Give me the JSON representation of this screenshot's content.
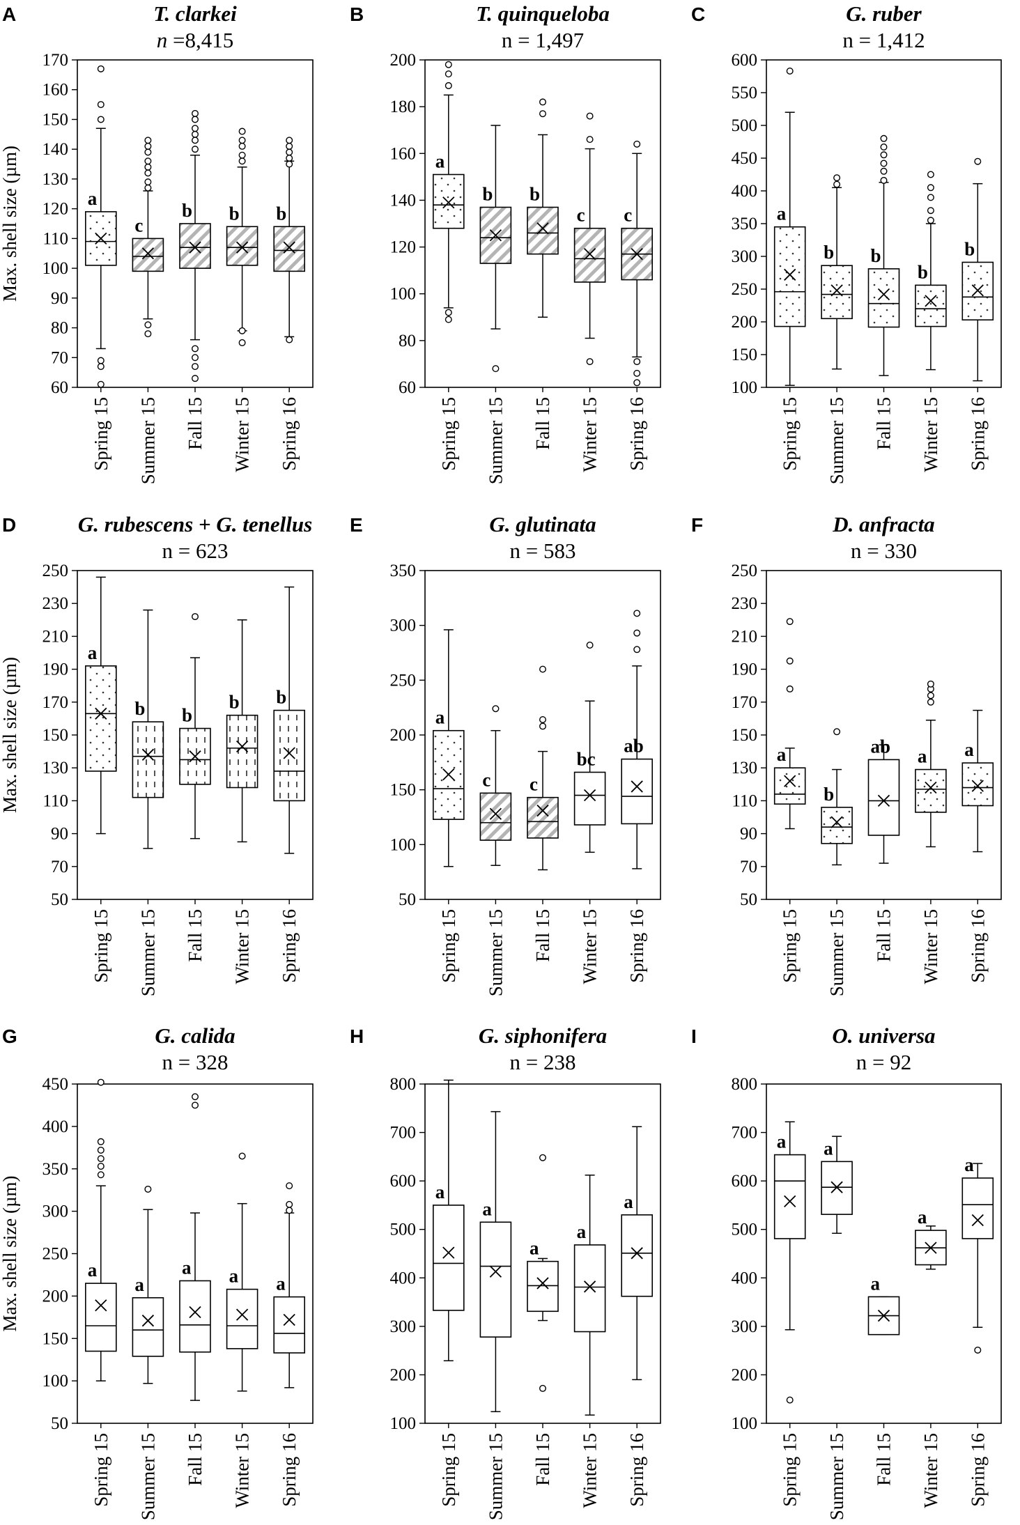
{
  "figure": {
    "ylabel": "Max. shell size (µm)"
  },
  "chart_data": [
    {
      "panel": "A",
      "type": "boxplot",
      "title": "T. clarkei",
      "n_label": "n =8,415",
      "n_text": {
        "pre": "",
        "italic": "n",
        "post": " =8,415"
      },
      "ylabel": "Max. shell size (µm)",
      "ylim": [
        60,
        170
      ],
      "ticks": [
        60,
        70,
        80,
        90,
        100,
        110,
        120,
        130,
        140,
        150,
        160,
        170
      ],
      "categories": [
        "Spring 15",
        "Summer 15",
        "Fall 15",
        "Winter 15",
        "Spring 16"
      ],
      "boxes": [
        {
          "q1": 101,
          "median": 109,
          "q3": 119,
          "mean": 110,
          "whisker_low": 73,
          "whisker_high": 147,
          "outliers": [
            61,
            67,
            69,
            150,
            155,
            167
          ],
          "letter": "a",
          "fill": "dots"
        },
        {
          "q1": 99,
          "median": 104,
          "q3": 110,
          "mean": 105,
          "whisker_low": 83,
          "whisker_high": 126,
          "outliers": [
            78,
            81,
            127,
            129,
            132,
            134,
            136,
            139,
            141,
            143
          ],
          "letter": "c",
          "fill": "diag"
        },
        {
          "q1": 100,
          "median": 107,
          "q3": 115,
          "mean": 107,
          "whisker_low": 76,
          "whisker_high": 138,
          "outliers": [
            63,
            67,
            70,
            73,
            140,
            143,
            145,
            147,
            150,
            152
          ],
          "letter": "b",
          "fill": "diag"
        },
        {
          "q1": 101,
          "median": 107,
          "q3": 114,
          "mean": 107,
          "whisker_low": 79,
          "whisker_high": 134,
          "outliers": [
            75,
            79,
            136,
            138,
            141,
            143,
            146
          ],
          "letter": "b",
          "fill": "diag"
        },
        {
          "q1": 99,
          "median": 106,
          "q3": 114,
          "mean": 107,
          "whisker_low": 77,
          "whisker_high": 136,
          "outliers": [
            76,
            135,
            137,
            139,
            141,
            143
          ],
          "letter": "b",
          "fill": "diag"
        }
      ]
    },
    {
      "panel": "B",
      "type": "boxplot",
      "title": "T. quinqueloba",
      "n_label": "n = 1,497",
      "n_text": {
        "pre": "n = 1,497",
        "italic": "",
        "post": ""
      },
      "ylabel": "",
      "ylim": [
        60,
        200
      ],
      "ticks": [
        60,
        80,
        100,
        120,
        140,
        160,
        180,
        200
      ],
      "categories": [
        "Spring 15",
        "Summer 15",
        "Fall 15",
        "Winter 15",
        "Spring 16"
      ],
      "boxes": [
        {
          "q1": 128,
          "median": 138,
          "q3": 151,
          "mean": 139,
          "whisker_low": 94,
          "whisker_high": 185,
          "outliers": [
            89,
            92,
            189,
            194,
            198
          ],
          "letter": "a",
          "fill": "dots"
        },
        {
          "q1": 113,
          "median": 124,
          "q3": 137,
          "mean": 125,
          "whisker_low": 85,
          "whisker_high": 172,
          "outliers": [
            68
          ],
          "letter": "b",
          "fill": "diag"
        },
        {
          "q1": 117,
          "median": 126,
          "q3": 137,
          "mean": 128,
          "whisker_low": 90,
          "whisker_high": 168,
          "outliers": [
            177,
            182
          ],
          "letter": "b",
          "fill": "diag"
        },
        {
          "q1": 105,
          "median": 115,
          "q3": 128,
          "mean": 117,
          "whisker_low": 81,
          "whisker_high": 162,
          "outliers": [
            71,
            166,
            176
          ],
          "letter": "c",
          "fill": "diag"
        },
        {
          "q1": 106,
          "median": 117,
          "q3": 128,
          "mean": 117,
          "whisker_low": 73,
          "whisker_high": 160,
          "outliers": [
            62,
            66,
            71,
            164
          ],
          "letter": "c",
          "fill": "diag"
        }
      ]
    },
    {
      "panel": "C",
      "type": "boxplot",
      "title": "G. ruber",
      "n_label": "n = 1,412",
      "n_text": {
        "pre": "n = 1,412",
        "italic": "",
        "post": ""
      },
      "ylabel": "",
      "ylim": [
        100,
        600
      ],
      "ticks": [
        100,
        150,
        200,
        250,
        300,
        350,
        400,
        450,
        500,
        550,
        600
      ],
      "categories": [
        "Spring 15",
        "Summer 15",
        "Fall 15",
        "Winter 15",
        "Spring 16"
      ],
      "boxes": [
        {
          "q1": 193,
          "median": 246,
          "q3": 345,
          "mean": 272,
          "whisker_low": 103,
          "whisker_high": 520,
          "outliers": [
            583
          ],
          "letter": "a",
          "fill": "dots"
        },
        {
          "q1": 205,
          "median": 242,
          "q3": 286,
          "mean": 248,
          "whisker_low": 128,
          "whisker_high": 405,
          "outliers": [
            410,
            420
          ],
          "letter": "b",
          "fill": "dots"
        },
        {
          "q1": 192,
          "median": 228,
          "q3": 281,
          "mean": 242,
          "whisker_low": 118,
          "whisker_high": 413,
          "outliers": [
            416,
            430,
            442,
            455,
            467,
            480
          ],
          "letter": "b",
          "fill": "dots"
        },
        {
          "q1": 193,
          "median": 220,
          "q3": 256,
          "mean": 232,
          "whisker_low": 127,
          "whisker_high": 350,
          "outliers": [
            355,
            370,
            390,
            405,
            425
          ],
          "letter": "b",
          "fill": "dots"
        },
        {
          "q1": 203,
          "median": 238,
          "q3": 291,
          "mean": 248,
          "whisker_low": 110,
          "whisker_high": 411,
          "outliers": [
            445
          ],
          "letter": "b",
          "fill": "dots"
        }
      ]
    },
    {
      "panel": "D",
      "type": "boxplot",
      "title": "G. rubescens + G. tenellus",
      "n_label": "n = 623",
      "n_text": {
        "pre": "n = 623",
        "italic": "",
        "post": ""
      },
      "ylabel": "Max. shell size (µm)",
      "ylim": [
        50,
        250
      ],
      "ticks": [
        50,
        70,
        90,
        110,
        130,
        150,
        170,
        190,
        210,
        230,
        250
      ],
      "categories": [
        "Spring 15",
        "Summer 15",
        "Fall 15",
        "Winter 15",
        "Spring 16"
      ],
      "boxes": [
        {
          "q1": 128,
          "median": 163,
          "q3": 192,
          "mean": 163,
          "whisker_low": 90,
          "whisker_high": 246,
          "outliers": [],
          "letter": "a",
          "fill": "dots"
        },
        {
          "q1": 112,
          "median": 137,
          "q3": 158,
          "mean": 138,
          "whisker_low": 81,
          "whisker_high": 226,
          "outliers": [],
          "letter": "b",
          "fill": "dash"
        },
        {
          "q1": 120,
          "median": 135,
          "q3": 154,
          "mean": 137,
          "whisker_low": 87,
          "whisker_high": 197,
          "outliers": [
            222
          ],
          "letter": "b",
          "fill": "dash"
        },
        {
          "q1": 118,
          "median": 142,
          "q3": 162,
          "mean": 143,
          "whisker_low": 85,
          "whisker_high": 220,
          "outliers": [],
          "letter": "b",
          "fill": "dash"
        },
        {
          "q1": 110,
          "median": 128,
          "q3": 165,
          "mean": 139,
          "whisker_low": 78,
          "whisker_high": 240,
          "outliers": [],
          "letter": "b",
          "fill": "dash"
        }
      ]
    },
    {
      "panel": "E",
      "type": "boxplot",
      "title": "G. glutinata",
      "n_label": "n = 583",
      "n_text": {
        "pre": "n = 583",
        "italic": "",
        "post": ""
      },
      "ylabel": "",
      "ylim": [
        50,
        350
      ],
      "ticks": [
        50,
        100,
        150,
        200,
        250,
        300,
        350
      ],
      "categories": [
        "Spring 15",
        "Summer 15",
        "Fall 15",
        "Winter 15",
        "Spring 16"
      ],
      "boxes": [
        {
          "q1": 123,
          "median": 151,
          "q3": 204,
          "mean": 164,
          "whisker_low": 80,
          "whisker_high": 296,
          "outliers": [],
          "letter": "a",
          "fill": "dots"
        },
        {
          "q1": 104,
          "median": 120,
          "q3": 147,
          "mean": 128,
          "whisker_low": 81,
          "whisker_high": 204,
          "outliers": [
            224
          ],
          "letter": "c",
          "fill": "diag"
        },
        {
          "q1": 106,
          "median": 121,
          "q3": 143,
          "mean": 131,
          "whisker_low": 77,
          "whisker_high": 185,
          "outliers": [
            208,
            214,
            260
          ],
          "letter": "c",
          "fill": "diag"
        },
        {
          "q1": 118,
          "median": 145,
          "q3": 166,
          "mean": 145,
          "whisker_low": 93,
          "whisker_high": 231,
          "outliers": [
            282
          ],
          "letter": "bc",
          "fill": "none"
        },
        {
          "q1": 119,
          "median": 144,
          "q3": 178,
          "mean": 153,
          "whisker_low": 78,
          "whisker_high": 263,
          "outliers": [
            278,
            293,
            311
          ],
          "letter": "ab",
          "fill": "none"
        }
      ]
    },
    {
      "panel": "F",
      "type": "boxplot",
      "title": "D. anfracta",
      "n_label": "n = 330",
      "n_text": {
        "pre": "n = 330",
        "italic": "",
        "post": ""
      },
      "ylabel": "",
      "ylim": [
        50,
        250
      ],
      "ticks": [
        50,
        70,
        90,
        110,
        130,
        150,
        170,
        190,
        210,
        230,
        250
      ],
      "categories": [
        "Spring 15",
        "Summer 15",
        "Fall 15",
        "Winter 15",
        "Spring 16"
      ],
      "boxes": [
        {
          "q1": 108,
          "median": 114,
          "q3": 130,
          "mean": 122,
          "whisker_low": 93,
          "whisker_high": 142,
          "outliers": [
            178,
            195,
            219
          ],
          "letter": "a",
          "fill": "dots"
        },
        {
          "q1": 84,
          "median": 94,
          "q3": 106,
          "mean": 97,
          "whisker_low": 71,
          "whisker_high": 129,
          "outliers": [
            152
          ],
          "letter": "b",
          "fill": "dots"
        },
        {
          "q1": 89,
          "median": 110,
          "q3": 135,
          "mean": 110,
          "whisker_low": 72,
          "whisker_high": 144,
          "outliers": [],
          "letter": "ab",
          "fill": "none"
        },
        {
          "q1": 103,
          "median": 117,
          "q3": 129,
          "mean": 118,
          "whisker_low": 82,
          "whisker_high": 159,
          "outliers": [
            170,
            174,
            178,
            181
          ],
          "letter": "a",
          "fill": "dots"
        },
        {
          "q1": 107,
          "median": 118,
          "q3": 133,
          "mean": 119,
          "whisker_low": 79,
          "whisker_high": 165,
          "outliers": [],
          "letter": "a",
          "fill": "dots"
        }
      ]
    },
    {
      "panel": "G",
      "type": "boxplot",
      "title": "G. calida",
      "n_label": "n = 328",
      "n_text": {
        "pre": "n = 328",
        "italic": "",
        "post": ""
      },
      "ylabel": "Max. shell size (µm)",
      "ylim": [
        50,
        450
      ],
      "ticks": [
        50,
        100,
        150,
        200,
        250,
        300,
        350,
        400,
        450
      ],
      "categories": [
        "Spring 15",
        "Summer 15",
        "Fall 15",
        "Winter 15",
        "Spring 16"
      ],
      "boxes": [
        {
          "q1": 135,
          "median": 165,
          "q3": 215,
          "mean": 189,
          "whisker_low": 100,
          "whisker_high": 330,
          "outliers": [
            343,
            353,
            362,
            372,
            382,
            452
          ],
          "letter": "a",
          "fill": "none"
        },
        {
          "q1": 129,
          "median": 160,
          "q3": 198,
          "mean": 171,
          "whisker_low": 97,
          "whisker_high": 302,
          "outliers": [
            326
          ],
          "letter": "a",
          "fill": "none"
        },
        {
          "q1": 134,
          "median": 166,
          "q3": 218,
          "mean": 181,
          "whisker_low": 77,
          "whisker_high": 298,
          "outliers": [
            425,
            435
          ],
          "letter": "a",
          "fill": "none"
        },
        {
          "q1": 138,
          "median": 165,
          "q3": 208,
          "mean": 178,
          "whisker_low": 88,
          "whisker_high": 309,
          "outliers": [
            365
          ],
          "letter": "a",
          "fill": "none"
        },
        {
          "q1": 133,
          "median": 156,
          "q3": 199,
          "mean": 172,
          "whisker_low": 92,
          "whisker_high": 298,
          "outliers": [
            301,
            308,
            330
          ],
          "letter": "a",
          "fill": "none"
        }
      ]
    },
    {
      "panel": "H",
      "type": "boxplot",
      "title": "G. siphonifera",
      "n_label": "n = 238",
      "n_text": {
        "pre": "n = 238",
        "italic": "",
        "post": ""
      },
      "ylabel": "",
      "ylim": [
        100,
        800
      ],
      "ticks": [
        100,
        200,
        300,
        400,
        500,
        600,
        700,
        800
      ],
      "categories": [
        "Spring 15",
        "Summer 15",
        "Fall 15",
        "Winter 15",
        "Spring 16"
      ],
      "boxes": [
        {
          "q1": 333,
          "median": 430,
          "q3": 550,
          "mean": 452,
          "whisker_low": 229,
          "whisker_high": 808,
          "outliers": [],
          "letter": "a",
          "fill": "none"
        },
        {
          "q1": 278,
          "median": 424,
          "q3": 515,
          "mean": 413,
          "whisker_low": 124,
          "whisker_high": 743,
          "outliers": [],
          "letter": "a",
          "fill": "none"
        },
        {
          "q1": 331,
          "median": 384,
          "q3": 434,
          "mean": 389,
          "whisker_low": 312,
          "whisker_high": 440,
          "outliers": [
            172,
            648
          ],
          "letter": "a",
          "fill": "none"
        },
        {
          "q1": 289,
          "median": 381,
          "q3": 468,
          "mean": 382,
          "whisker_low": 117,
          "whisker_high": 612,
          "outliers": [],
          "letter": "a",
          "fill": "none"
        },
        {
          "q1": 362,
          "median": 451,
          "q3": 530,
          "mean": 451,
          "whisker_low": 190,
          "whisker_high": 712,
          "outliers": [],
          "letter": "a",
          "fill": "none"
        }
      ]
    },
    {
      "panel": "I",
      "type": "boxplot",
      "title": "O. universa",
      "n_label": "n = 92",
      "n_text": {
        "pre": "n = 92",
        "italic": "",
        "post": ""
      },
      "ylabel": "",
      "ylim": [
        100,
        800
      ],
      "ticks": [
        100,
        200,
        300,
        400,
        500,
        600,
        700,
        800
      ],
      "categories": [
        "Spring 15",
        "Summer 15",
        "Fall 15",
        "Winter 15",
        "Spring 16"
      ],
      "boxes": [
        {
          "q1": 481,
          "median": 600,
          "q3": 654,
          "mean": 558,
          "whisker_low": 293,
          "whisker_high": 722,
          "outliers": [
            148
          ],
          "letter": "a",
          "fill": "none"
        },
        {
          "q1": 531,
          "median": 587,
          "q3": 640,
          "mean": 587,
          "whisker_low": 492,
          "whisker_high": 692,
          "outliers": [],
          "letter": "a",
          "fill": "none"
        },
        {
          "q1": 283,
          "median": 322,
          "q3": 361,
          "mean": 322,
          "whisker_low": 283,
          "whisker_high": 361,
          "outliers": [],
          "letter": "a",
          "fill": "none"
        },
        {
          "q1": 427,
          "median": 462,
          "q3": 498,
          "mean": 462,
          "whisker_low": 418,
          "whisker_high": 507,
          "outliers": [],
          "letter": "a",
          "fill": "none"
        },
        {
          "q1": 481,
          "median": 551,
          "q3": 606,
          "mean": 519,
          "whisker_low": 298,
          "whisker_high": 636,
          "outliers": [
            251
          ],
          "letter": "a",
          "fill": "none"
        }
      ]
    }
  ]
}
